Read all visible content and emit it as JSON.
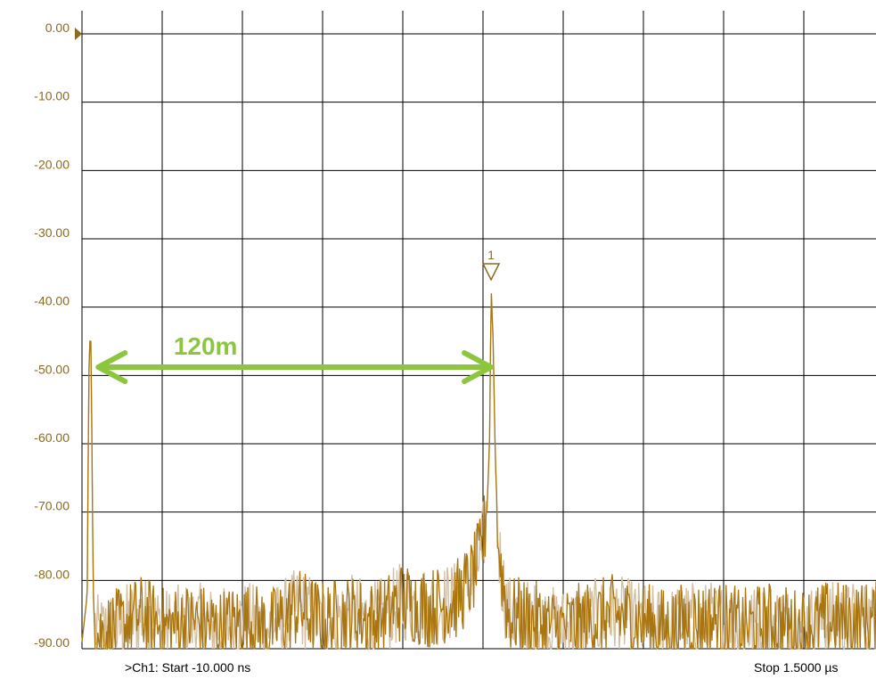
{
  "chart_data": {
    "type": "line",
    "ylim": [
      -90,
      0
    ],
    "y_ticks": [
      "0.00",
      "-10.00",
      "-20.00",
      "-30.00",
      "-40.00",
      "-50.00",
      "-60.00",
      "-70.00",
      "-80.00",
      "-90.00"
    ],
    "grid": true,
    "x_start_ns": -10,
    "x_stop_ns": 1500,
    "series": [
      {
        "color": "#a8750e",
        "points": [
          [
            -10,
            -89
          ],
          [
            0,
            -82
          ],
          [
            3,
            -50
          ],
          [
            5,
            -45
          ],
          [
            7,
            -45
          ],
          [
            9,
            -60
          ],
          [
            11,
            -80
          ],
          [
            13,
            -86
          ],
          [
            20,
            -88
          ],
          [
            60,
            -87
          ],
          [
            100,
            -85
          ],
          [
            150,
            -87
          ],
          [
            200,
            -86
          ],
          [
            250,
            -87
          ],
          [
            300,
            -86
          ],
          [
            350,
            -87
          ],
          [
            400,
            -84
          ],
          [
            450,
            -86
          ],
          [
            500,
            -85
          ],
          [
            550,
            -86
          ],
          [
            600,
            -83
          ],
          [
            650,
            -84
          ],
          [
            700,
            -83
          ],
          [
            730,
            -80
          ],
          [
            750,
            -76
          ],
          [
            760,
            -70
          ],
          [
            765,
            -60
          ],
          [
            768,
            -37
          ],
          [
            772,
            -45
          ],
          [
            776,
            -62
          ],
          [
            782,
            -75
          ],
          [
            790,
            -80
          ],
          [
            800,
            -85
          ],
          [
            850,
            -86
          ],
          [
            900,
            -87
          ],
          [
            950,
            -86
          ],
          [
            1000,
            -85
          ],
          [
            1050,
            -86
          ],
          [
            1100,
            -87
          ],
          [
            1150,
            -86
          ],
          [
            1200,
            -86
          ],
          [
            1250,
            -87
          ],
          [
            1300,
            -86
          ],
          [
            1350,
            -87
          ],
          [
            1400,
            -86
          ],
          [
            1450,
            -86
          ],
          [
            1500,
            -86
          ]
        ]
      }
    ],
    "marker": {
      "label": "1",
      "x_ns": 768,
      "y": -36
    },
    "annotation": {
      "text": "120m",
      "color": "#8cc63f",
      "from_x_ns": 4,
      "to_x_ns": 768,
      "y": -48
    }
  },
  "footer": {
    "start_text": ">Ch1: Start  -10.000 ns",
    "stop_text": "Stop  1.5000 µs"
  },
  "colors": {
    "trace": "#a8750e",
    "trace_light": "#d4bfa0",
    "grid": "#000000",
    "tick_text": "#8b6a1e",
    "annotation": "#8cc63f"
  }
}
